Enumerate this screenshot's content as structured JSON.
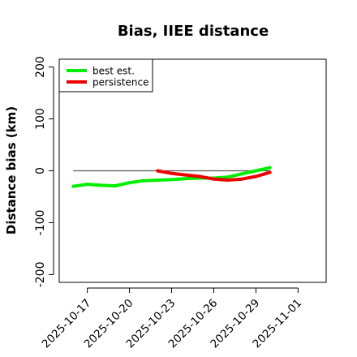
{
  "chart_data": {
    "type": "line",
    "title": "Bias, IIEE distance",
    "xlabel": "",
    "ylabel": "Distance bias (km)",
    "xlim": [
      "2025-10-15",
      "2025-11-03"
    ],
    "ylim": [
      -215,
      215
    ],
    "yticks": [
      -200,
      -100,
      0,
      100,
      200
    ],
    "xticks": [
      "2025-10-17",
      "2025-10-20",
      "2025-10-23",
      "2025-10-26",
      "2025-10-29",
      "2025-11-01"
    ],
    "grid": false,
    "legend_position": "top-left",
    "reference_line": {
      "y": 0,
      "x_start": "2025-10-16",
      "x_end": "2025-10-30",
      "color": "#555555"
    },
    "series": [
      {
        "name": "best est.",
        "color": "#00ee00",
        "x": [
          "2025-10-16",
          "2025-10-17",
          "2025-10-18",
          "2025-10-19",
          "2025-10-20",
          "2025-10-21",
          "2025-10-22",
          "2025-10-23",
          "2025-10-24",
          "2025-10-25",
          "2025-10-26",
          "2025-10-27",
          "2025-10-28",
          "2025-10-29",
          "2025-10-30"
        ],
        "values": [
          -30,
          -26,
          -28,
          -29,
          -23,
          -19,
          -18,
          -17,
          -15,
          -14,
          -14,
          -12,
          -6,
          0,
          6
        ]
      },
      {
        "name": "persistence",
        "color": "#ee0000",
        "x": [
          "2025-10-22",
          "2025-10-23",
          "2025-10-24",
          "2025-10-25",
          "2025-10-26",
          "2025-10-27",
          "2025-10-28",
          "2025-10-29",
          "2025-10-30"
        ],
        "values": [
          0,
          -5,
          -8,
          -11,
          -16,
          -18,
          -16,
          -11,
          -3
        ]
      }
    ]
  }
}
